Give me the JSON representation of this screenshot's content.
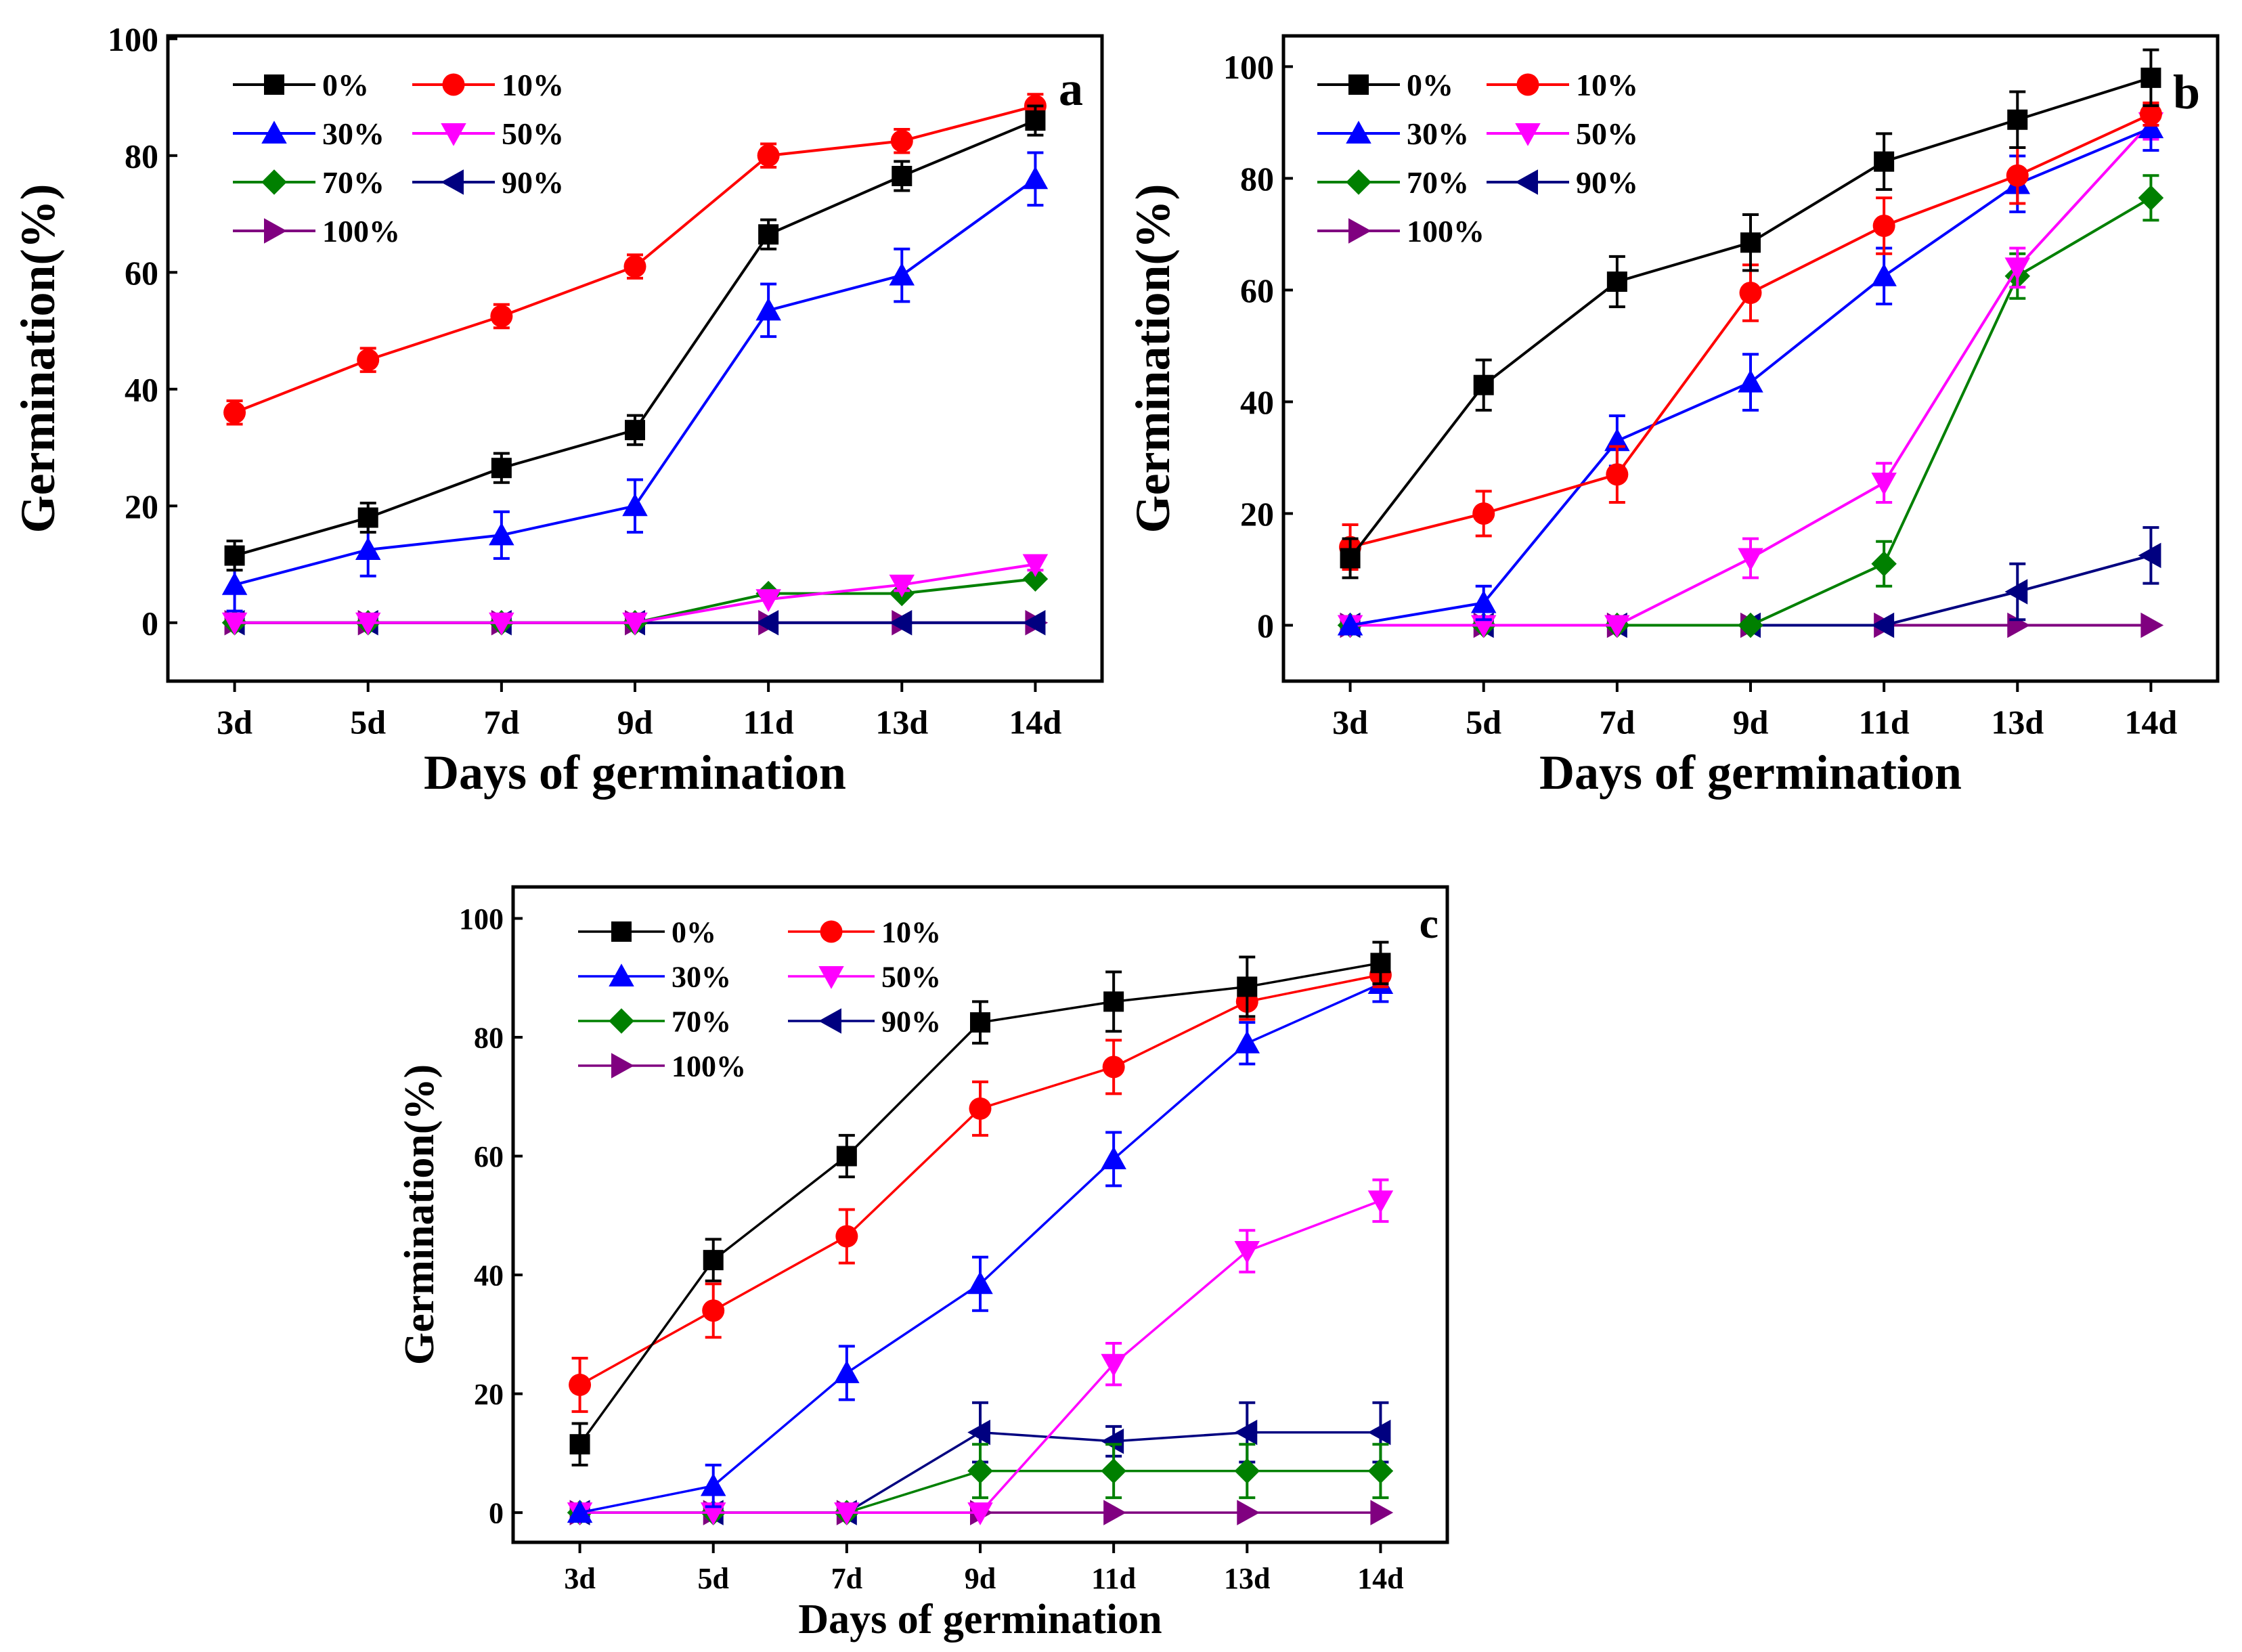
{
  "colors": {
    "0%": "#000000",
    "10%": "#ff0000",
    "30%": "#0000ff",
    "50%": "#ff00ff",
    "70%": "#008000",
    "90%": "#000080",
    "100%": "#800080"
  },
  "chart_data": [
    {
      "type": "line",
      "panel": "a",
      "categories": [
        "3d",
        "5d",
        "7d",
        "9d",
        "11d",
        "13d",
        "14d"
      ],
      "xlabel": "Days of germination",
      "ylabel": "Germination(%)",
      "ylim": [
        -10,
        100.5
      ],
      "yticks": [
        0,
        20,
        40,
        60,
        80,
        100
      ],
      "series": [
        {
          "name": "0%",
          "marker": "square",
          "values": [
            11.5,
            18,
            26.5,
            33,
            66.5,
            76.5,
            86
          ],
          "errors": [
            2.5,
            2.5,
            2.5,
            2.5,
            2.5,
            2.5,
            2.5
          ]
        },
        {
          "name": "10%",
          "marker": "circle",
          "values": [
            36,
            45,
            52.5,
            61,
            80,
            82.5,
            88.5
          ],
          "errors": [
            2,
            2,
            2,
            2,
            2,
            2,
            2
          ]
        },
        {
          "name": "30%",
          "marker": "triangle-up",
          "values": [
            6.5,
            12.5,
            15,
            20,
            53.5,
            59.5,
            76
          ],
          "errors": [
            4.5,
            4.5,
            4,
            4.5,
            4.5,
            4.5,
            4.5
          ]
        },
        {
          "name": "50%",
          "marker": "triangle-down",
          "values": [
            0,
            0,
            0,
            0,
            4,
            6.5,
            10
          ],
          "errors": [
            0,
            0,
            0,
            0,
            0,
            1,
            1
          ]
        },
        {
          "name": "70%",
          "marker": "diamond",
          "values": [
            0,
            0,
            0,
            0,
            5,
            5,
            7.5
          ],
          "errors": [
            0,
            0,
            0,
            0,
            0,
            0,
            0
          ]
        },
        {
          "name": "90%",
          "marker": "triangle-left",
          "values": [
            0,
            0,
            0,
            0,
            0,
            0,
            0
          ],
          "errors": [
            0,
            0,
            0,
            0,
            0,
            0,
            0
          ]
        },
        {
          "name": "100%",
          "marker": "triangle-right",
          "values": [
            0,
            0,
            0,
            0,
            0,
            0,
            0
          ],
          "errors": [
            0,
            0,
            0,
            0,
            0,
            0,
            0
          ]
        }
      ]
    },
    {
      "type": "line",
      "panel": "b",
      "categories": [
        "3d",
        "5d",
        "7d",
        "9d",
        "11d",
        "13d",
        "14d"
      ],
      "xlabel": "Days of germination",
      "ylabel": "Germination(%)",
      "ylim": [
        -10,
        105.5
      ],
      "yticks": [
        0,
        20,
        40,
        60,
        80,
        100
      ],
      "series": [
        {
          "name": "0%",
          "marker": "square",
          "values": [
            12,
            43,
            61.5,
            68.5,
            83,
            90.5,
            98
          ],
          "errors": [
            3.5,
            4.5,
            4.5,
            5,
            5,
            5,
            5
          ]
        },
        {
          "name": "10%",
          "marker": "circle",
          "values": [
            14,
            20,
            27,
            59.5,
            71.5,
            80.5,
            91.5
          ],
          "errors": [
            4,
            4,
            5,
            5,
            5,
            5,
            2
          ]
        },
        {
          "name": "30%",
          "marker": "triangle-up",
          "values": [
            0,
            4,
            33,
            43.5,
            62.5,
            79,
            89
          ],
          "errors": [
            0,
            3,
            4.5,
            5,
            5,
            5,
            4
          ]
        },
        {
          "name": "50%",
          "marker": "triangle-down",
          "values": [
            0,
            0,
            0,
            12,
            25.5,
            64,
            90
          ],
          "errors": [
            0,
            0,
            0,
            3.5,
            3.5,
            3.5,
            3
          ]
        },
        {
          "name": "70%",
          "marker": "diamond",
          "values": [
            0,
            0,
            0,
            0,
            11,
            62.5,
            76.5
          ],
          "errors": [
            0,
            0,
            0,
            0,
            4,
            4,
            4
          ]
        },
        {
          "name": "90%",
          "marker": "triangle-left",
          "values": [
            0,
            0,
            0,
            0,
            0,
            6,
            12.5
          ],
          "errors": [
            0,
            0,
            0,
            0,
            0,
            5,
            5
          ]
        },
        {
          "name": "100%",
          "marker": "triangle-right",
          "values": [
            0,
            0,
            0,
            0,
            0,
            0,
            0
          ],
          "errors": [
            0,
            0,
            0,
            0,
            0,
            0,
            0
          ]
        }
      ]
    },
    {
      "type": "line",
      "panel": "c",
      "categories": [
        "3d",
        "5d",
        "7d",
        "9d",
        "11d",
        "13d",
        "14d"
      ],
      "xlabel": "Days of germination",
      "ylabel": "Germination(%)",
      "ylim": [
        -5,
        105.3
      ],
      "yticks": [
        0,
        20,
        40,
        60,
        80,
        100
      ],
      "series": [
        {
          "name": "0%",
          "marker": "square",
          "values": [
            11.5,
            42.5,
            60,
            82.5,
            86,
            88.5,
            92.5
          ],
          "errors": [
            3.5,
            3.5,
            3.5,
            3.5,
            5,
            5,
            3.5
          ]
        },
        {
          "name": "10%",
          "marker": "circle",
          "values": [
            21.5,
            34,
            46.5,
            68,
            75,
            86,
            90.5
          ],
          "errors": [
            4.5,
            4.5,
            4.5,
            4.5,
            4.5,
            3,
            2
          ]
        },
        {
          "name": "30%",
          "marker": "triangle-up",
          "values": [
            0,
            4.5,
            23.5,
            38.5,
            59.5,
            79,
            89
          ],
          "errors": [
            0,
            3.5,
            4.5,
            4.5,
            4.5,
            3.5,
            3
          ]
        },
        {
          "name": "50%",
          "marker": "triangle-down",
          "values": [
            0,
            0,
            0,
            0,
            25,
            44,
            52.5
          ],
          "errors": [
            0,
            0,
            0,
            0,
            3.5,
            3.5,
            3.5
          ]
        },
        {
          "name": "70%",
          "marker": "diamond",
          "values": [
            0,
            0,
            0,
            7,
            7,
            7,
            7
          ],
          "errors": [
            0,
            0,
            0,
            4.5,
            4.5,
            4.5,
            4.5
          ]
        },
        {
          "name": "90%",
          "marker": "triangle-left",
          "values": [
            0,
            0,
            0,
            13.5,
            12,
            13.5,
            13.5
          ],
          "errors": [
            0,
            0,
            0,
            5,
            2.5,
            5,
            5
          ]
        },
        {
          "name": "100%",
          "marker": "triangle-right",
          "values": [
            0,
            0,
            0,
            0,
            0,
            0,
            0
          ],
          "errors": [
            0,
            0,
            0,
            0,
            0,
            0,
            0
          ]
        }
      ]
    }
  ]
}
